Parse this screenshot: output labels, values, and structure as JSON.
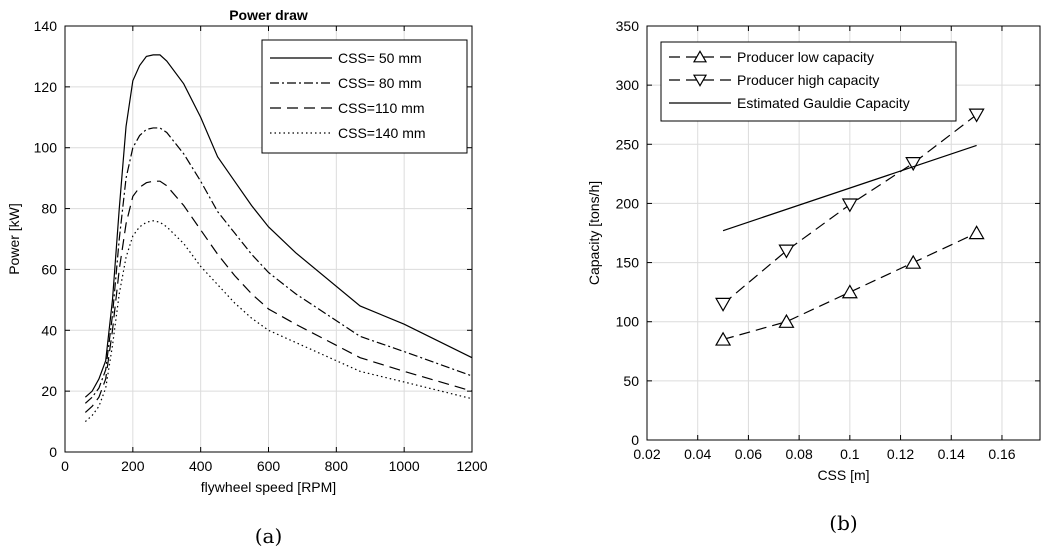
{
  "chart_data": [
    {
      "type": "line",
      "title": "Power draw",
      "caption": "(a)",
      "xlabel": "flywheel speed [RPM]",
      "ylabel": "Power [kW]",
      "xlim": [
        0,
        1200
      ],
      "ylim": [
        0,
        140
      ],
      "xticks": [
        0,
        200,
        400,
        600,
        800,
        1000,
        1200
      ],
      "yticks": [
        0,
        20,
        40,
        60,
        80,
        100,
        120,
        140
      ],
      "grid": true,
      "legend_position": "top-right",
      "series": [
        {
          "name": "CSS= 50 mm",
          "dash": "solid",
          "x": [
            60,
            80,
            100,
            120,
            140,
            160,
            180,
            200,
            220,
            240,
            260,
            280,
            300,
            350,
            400,
            450,
            500,
            550,
            600,
            680,
            870,
            1000,
            1200
          ],
          "y": [
            18,
            20,
            24,
            30,
            50,
            80,
            107,
            122,
            127,
            130,
            130.5,
            130.5,
            128.5,
            121,
            110,
            97,
            89,
            81,
            74,
            65.5,
            48,
            42,
            31
          ]
        },
        {
          "name": "CSS= 80 mm",
          "dash": "dashdot",
          "x": [
            60,
            80,
            100,
            120,
            140,
            160,
            180,
            200,
            220,
            240,
            260,
            280,
            300,
            350,
            400,
            450,
            500,
            550,
            600,
            680,
            870,
            1000,
            1200
          ],
          "y": [
            16,
            18,
            21,
            27,
            45,
            70,
            90,
            100,
            104,
            106,
            106.5,
            106.5,
            105,
            98,
            89,
            79,
            72,
            65,
            59,
            52,
            38,
            33,
            25
          ]
        },
        {
          "name": "CSS=110 mm",
          "dash": "dashed",
          "x": [
            60,
            80,
            100,
            120,
            140,
            160,
            180,
            200,
            220,
            240,
            260,
            280,
            300,
            350,
            400,
            450,
            500,
            550,
            600,
            680,
            870,
            1000,
            1200
          ],
          "y": [
            13,
            15,
            18,
            24,
            40,
            60,
            75,
            84,
            87,
            88.5,
            89,
            89,
            87.5,
            81,
            73,
            65,
            58,
            52,
            47,
            42,
            31,
            26.5,
            20
          ]
        },
        {
          "name": "CSS=140 mm",
          "dash": "dotted",
          "x": [
            60,
            80,
            100,
            120,
            140,
            160,
            180,
            200,
            220,
            240,
            260,
            280,
            300,
            350,
            400,
            450,
            500,
            550,
            600,
            680,
            870,
            1000,
            1200
          ],
          "y": [
            10,
            12,
            15,
            21,
            35,
            52,
            64,
            71,
            74,
            75.5,
            76,
            75.5,
            74,
            68.5,
            61,
            55,
            49,
            44,
            40,
            36,
            26.5,
            23,
            17.5
          ]
        }
      ]
    },
    {
      "type": "line",
      "title": "",
      "caption": "(b)",
      "xlabel": "CSS [m]",
      "ylabel": "Capacity [tons/h]",
      "xlim": [
        0.02,
        0.175
      ],
      "ylim": [
        0,
        350
      ],
      "xticks": [
        0.02,
        0.04,
        0.06,
        0.08,
        0.1,
        0.12,
        0.14,
        0.16
      ],
      "xticklabels": [
        "0.02",
        "0.04",
        "0.06",
        "0.08",
        "0.1",
        "0.12",
        "0.14",
        "0.16"
      ],
      "yticks": [
        0,
        50,
        100,
        150,
        200,
        250,
        300,
        350
      ],
      "grid": true,
      "legend_position": "top-left",
      "series": [
        {
          "name": "Producer low capacity",
          "dash": "dashed",
          "marker": "triangle-up",
          "x": [
            0.05,
            0.075,
            0.1,
            0.125,
            0.15
          ],
          "y": [
            85,
            100,
            125,
            150,
            175
          ]
        },
        {
          "name": "Producer high capacity",
          "dash": "dashed",
          "marker": "triangle-down",
          "x": [
            0.05,
            0.075,
            0.1,
            0.125,
            0.15
          ],
          "y": [
            115,
            160,
            199,
            234,
            275
          ]
        },
        {
          "name": "Estimated Gauldie Capacity",
          "dash": "solid",
          "marker": "none",
          "x": [
            0.05,
            0.15
          ],
          "y": [
            177,
            249
          ]
        }
      ]
    }
  ]
}
